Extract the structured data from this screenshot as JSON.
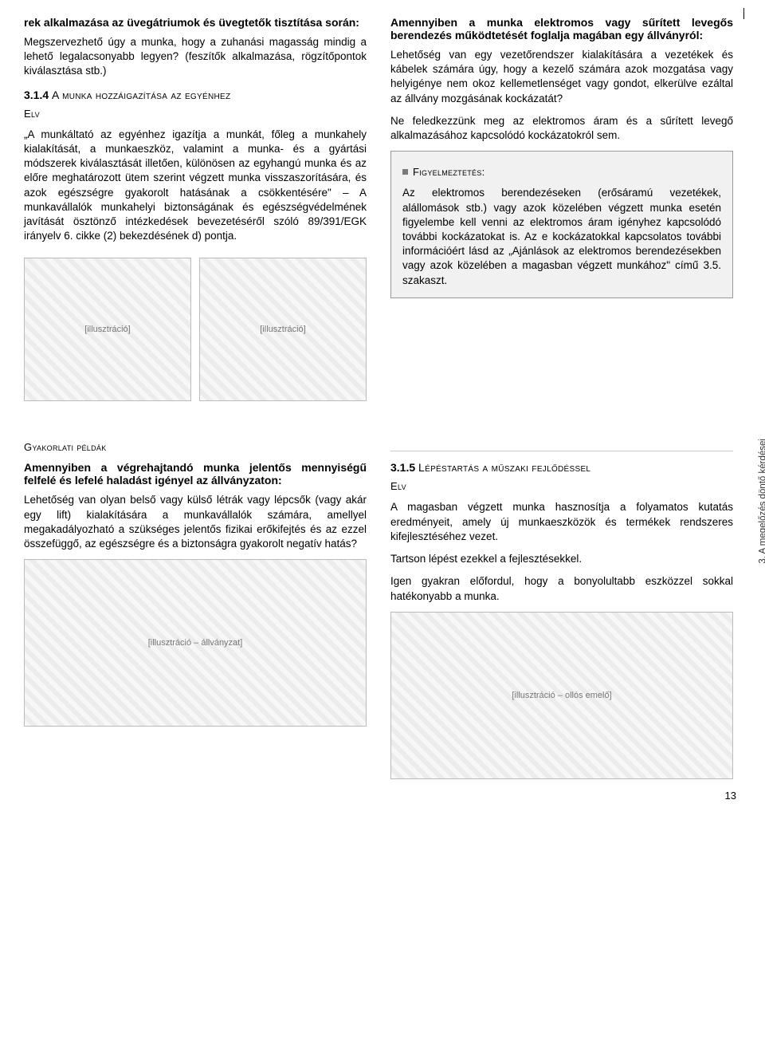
{
  "vertical_caption": "3. A megelőzés döntő kérdései",
  "page_number": "13",
  "left": {
    "p1_bold": "rek alkalmazása az üvegátriumok és üvegtetők tisztítása során:",
    "p1_body": "Megszervezhető úgy a munka, hogy a zuhanási magasság mindig a lehető legalacsonyabb legyen? (feszítők alkalmazása, rögzítőpontok kiválasztása stb.)",
    "sec314_num": "3.1.4",
    "sec314_title": "A munka hozzáigazítása az egyénhez",
    "elv_label": "Elv",
    "p2": "„A munkáltató az egyénhez igazítja a munkát, főleg a munkahely kialakítását, a munkaeszköz, valamint a munka- és a gyártási módszerek kiválasztását illetően, különösen az egyhangú munka és az előre meghatározott ütem szerint végzett munka visszaszorítására, és azok egészségre gyakorolt hatásának a csökkentésére\" – A munkavállalók munkahelyi biztonságának és egészségvédelmének javítását ösztönző intézkedések bevezetéséről szóló 89/391/EGK irányelv 6. cikke (2) bekezdésének d) pontja.",
    "figure1_alt": "[illusztráció]",
    "gyak_label": "Gyakorlati példák",
    "p3_bold": "Amennyiben a végrehajtandó munka jelentős mennyiségű felfelé és lefelé haladást igényel az állványzaton:",
    "p3_body": "Lehetőség van olyan belső vagy külső létrák vagy lépcsők (vagy akár egy lift) kialakítására a munkavállalók számára, amellyel megakadályozható a szükséges jelentős fizikai erőkifejtés és az ezzel összefüggő, az egészségre és a biztonságra gyakorolt negatív hatás?",
    "figure2_alt": "[illusztráció – állványzat]"
  },
  "right": {
    "p1_bold": "Amennyiben a munka elektromos vagy sűrített levegős berendezés működtetését foglalja magában egy állványról:",
    "p1_body": "Lehetőség van egy vezetőrendszer kialakítására a vezetékek és kábelek számára úgy, hogy a kezelő számára azok mozgatása vagy helyigénye nem okoz kellemetlenséget vagy gondot, elkerülve ezáltal az állvány mozgásának kockázatát?",
    "p2": "Ne feledkezzünk meg az elektromos áram és a sűrített levegő alkalmazásához kapcsolódó kockázatokról sem.",
    "warn_label": "Figyelmeztetés:",
    "warn_body": "Az elektromos berendezéseken (erősáramú vezetékek, alállomások stb.) vagy azok közelében végzett munka esetén figyelembe kell venni az elektromos áram igényhez kapcsolódó további kockázatokat is. Az e kockázatokkal kapcsolatos további információért lásd az „Ajánlások az elektromos berendezésekben vagy azok közelében a magasban végzett munkához\" című 3.5. szakaszt.",
    "sec315_num": "3.1.5",
    "sec315_title": "Lépéstartás a műszaki fejlődéssel",
    "elv_label": "Elv",
    "p3": "A magasban végzett munka hasznosítja a folyamatos kutatás eredményeit, amely új munkaeszközök és termékek rendszeres kifejlesztéséhez vezet.",
    "p4": "Tartson lépést ezekkel a fejlesztésekkel.",
    "p5": "Igen gyakran előfordul, hogy a bonyolultabb eszközzel sokkal hatékonyabb a munka.",
    "figure_alt": "[illusztráció – ollós emelő]"
  }
}
